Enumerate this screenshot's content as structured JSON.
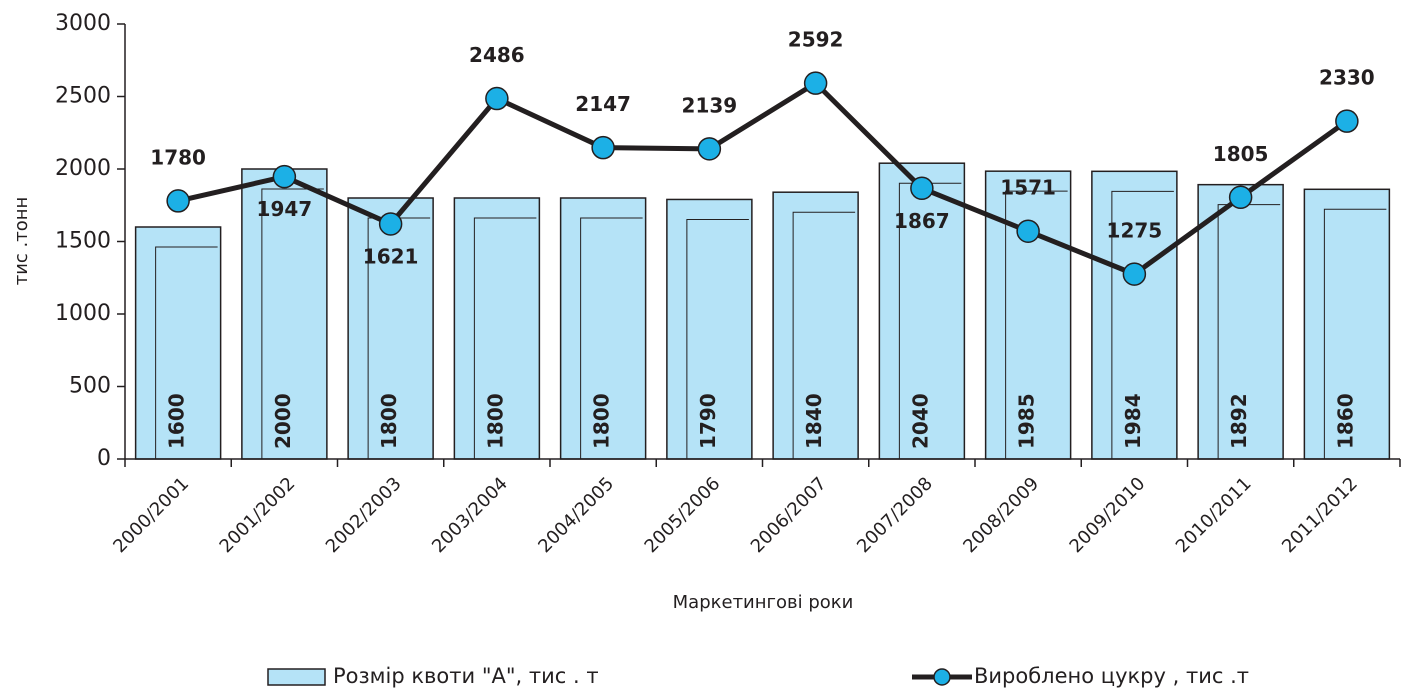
{
  "chart_data": {
    "type": "bar-line",
    "y_label": "тис .тонн",
    "x_label": "Маркетингові   роки",
    "categories": [
      "2000/2001",
      "2001/2002",
      "2002/2003",
      "2003/2004",
      "2004/2005",
      "2005/2006",
      "2006/2007",
      "2007/2008",
      "2008/2009",
      "2009/2010",
      "2010/2011",
      "2011/2012"
    ],
    "series": [
      {
        "name": "Розмір квоти  \"А\", тис . т",
        "type": "bar",
        "color": "#b5e3f7",
        "values": [
          1600,
          2000,
          1800,
          1800,
          1800,
          1790,
          1840,
          2040,
          1985,
          1984,
          1892,
          1860
        ]
      },
      {
        "name": "Вироблено  цукру , тис .т",
        "type": "line",
        "color": "#231f20",
        "marker_color": "#1cb0e6",
        "values": [
          1780,
          1947,
          1621,
          2486,
          2147,
          2139,
          2592,
          1867,
          1571,
          1275,
          1805,
          2330
        ]
      }
    ],
    "ylim": [
      0,
      3000
    ],
    "yticks": [
      0,
      500,
      1000,
      1500,
      2000,
      2500,
      3000
    ],
    "grid": false
  }
}
